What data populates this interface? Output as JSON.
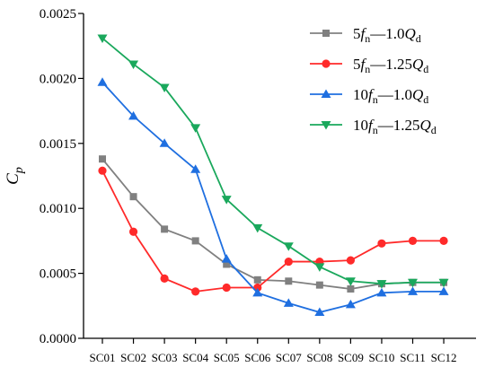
{
  "chart_data": {
    "type": "line",
    "ylabel_main": "C",
    "ylabel_sub": "p",
    "xlabel": "",
    "ylim": [
      0,
      0.0025
    ],
    "yticks": [
      0.0,
      0.0005,
      0.001,
      0.0015,
      0.002,
      0.0025
    ],
    "ytick_labels": [
      "0.0000",
      "0.0005",
      "0.0010",
      "0.0015",
      "0.0020",
      "0.0025"
    ],
    "categories": [
      "SC01",
      "SC02",
      "SC03",
      "SC04",
      "SC05",
      "SC06",
      "SC07",
      "SC08",
      "SC09",
      "SC10",
      "SC11",
      "SC12"
    ],
    "grid": false,
    "legend": "top-right",
    "series": [
      {
        "name": "5fn—1.0Qd",
        "legend_parts": [
          "5",
          "f",
          "n",
          "—1.0",
          "Q",
          "d"
        ],
        "color": "#808080",
        "marker": "square",
        "values": [
          0.00138,
          0.00109,
          0.00084,
          0.00075,
          0.00057,
          0.00045,
          0.00044,
          0.00041,
          0.00038,
          0.00042,
          0.00043,
          0.00043
        ]
      },
      {
        "name": "5fn—1.25Qd",
        "legend_parts": [
          "5",
          "f",
          "n",
          "—1.25",
          "Q",
          "d"
        ],
        "color": "#ff2a2a",
        "marker": "circle",
        "values": [
          0.00129,
          0.00082,
          0.00046,
          0.00036,
          0.00039,
          0.00039,
          0.00059,
          0.00059,
          0.0006,
          0.00073,
          0.00075,
          0.00075
        ]
      },
      {
        "name": "10fn—1.0Qd",
        "legend_parts": [
          "10",
          "f",
          "n",
          "—1.0",
          "Q",
          "d"
        ],
        "color": "#1f6fe0",
        "marker": "triangle-up",
        "values": [
          0.00197,
          0.00171,
          0.0015,
          0.0013,
          0.00061,
          0.00035,
          0.00027,
          0.0002,
          0.00026,
          0.00035,
          0.00036,
          0.00036
        ]
      },
      {
        "name": "10fn—1.25Qd",
        "legend_parts": [
          "10",
          "f",
          "n",
          "—1.25",
          "Q",
          "d"
        ],
        "color": "#1aa85c",
        "marker": "triangle-down",
        "values": [
          0.00231,
          0.00211,
          0.00193,
          0.00162,
          0.00107,
          0.00085,
          0.00071,
          0.00055,
          0.00044,
          0.00042,
          0.00043,
          0.00043
        ]
      }
    ]
  }
}
